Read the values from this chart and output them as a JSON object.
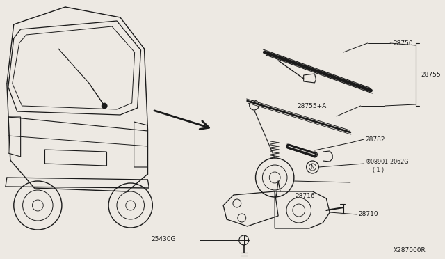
{
  "bg_color": "#ede9e3",
  "line_color": "#1a1a1a",
  "text_color": "#1a1a1a",
  "diagram_id": "X287000R",
  "figsize": [
    6.4,
    3.72
  ],
  "dpi": 100,
  "labels": {
    "28750": "28750",
    "28755": "28755",
    "28755A": "28755+A",
    "28782": "28782",
    "08901": "®08901-2062G\n( 1 )",
    "28716": "28716",
    "28710": "28710",
    "25430G": "25430G",
    "diag_id": "X287000R"
  }
}
